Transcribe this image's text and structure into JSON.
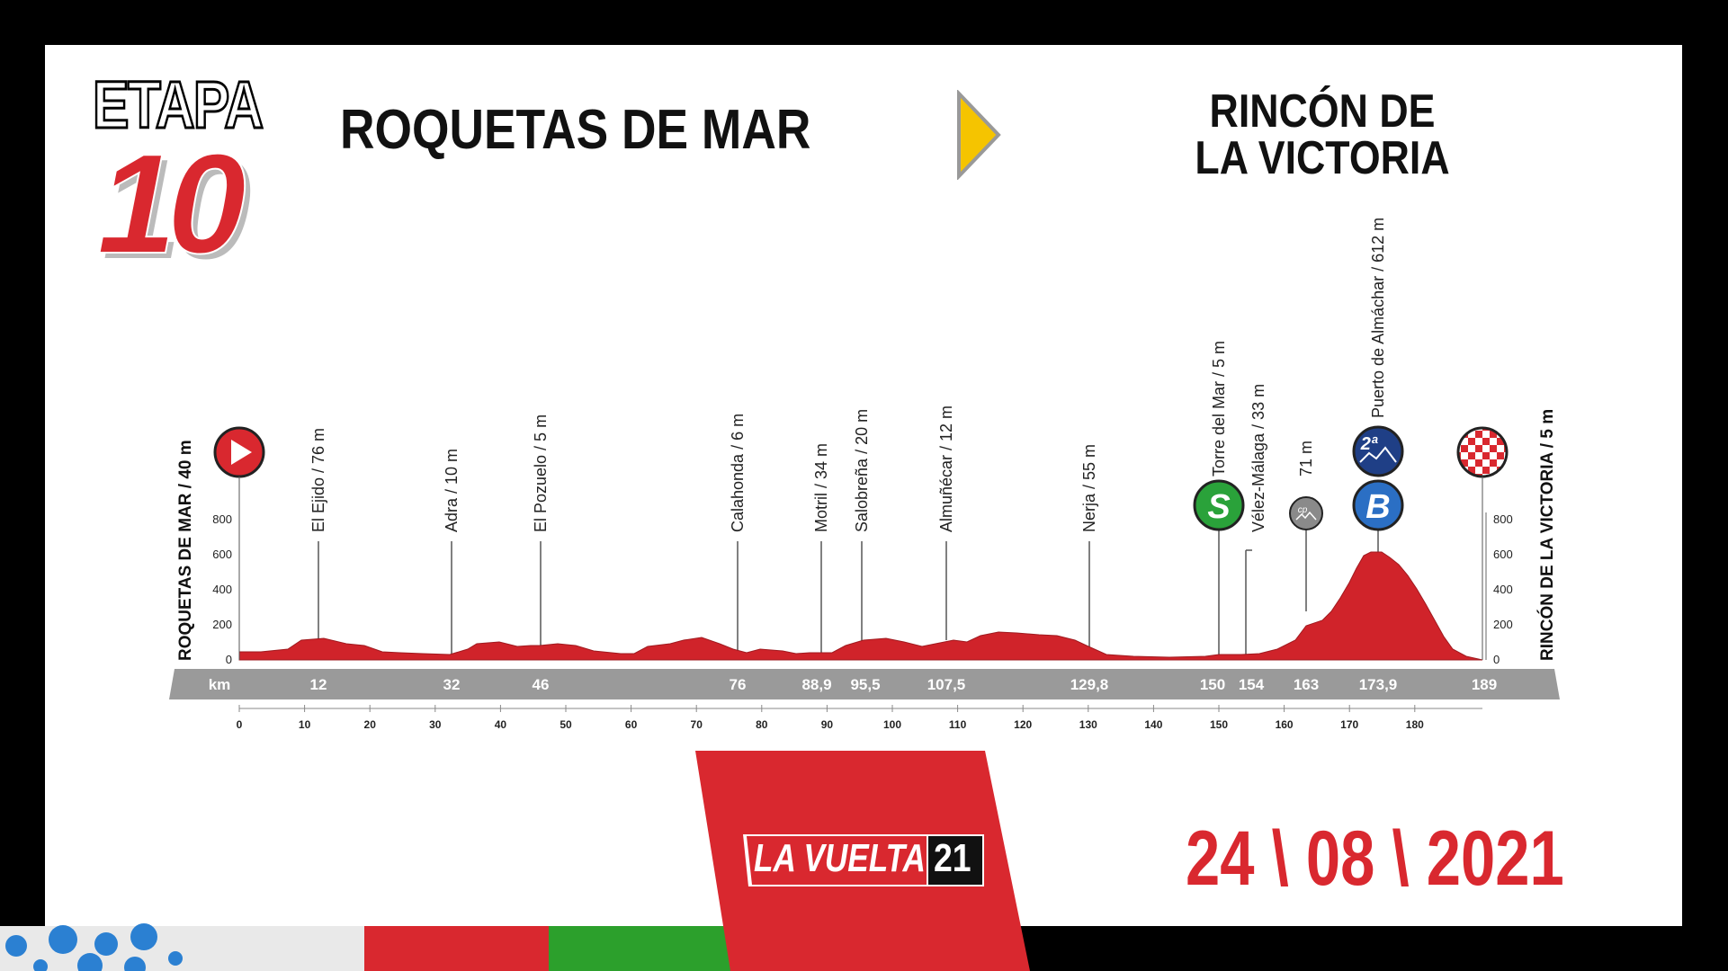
{
  "stage": {
    "word": "ETAPA",
    "number": "10"
  },
  "route": {
    "start": "ROQUETAS DE MAR",
    "finish_line1": "RINCÓN DE",
    "finish_line2": "LA VICTORIA"
  },
  "date": "24 \\ 08 \\ 2021",
  "logo": {
    "text": "LA VUELTA",
    "year": "21"
  },
  "profile": {
    "start_label": "ROQUETAS DE MAR / 40 m",
    "finish_label": "RINCÓN DE LA VICTORIA / 5 m",
    "km_label": "km",
    "elevation_ticks": [
      "800",
      "600",
      "400",
      "200",
      "0"
    ],
    "distance_ticks": [
      "0",
      "10",
      "20",
      "30",
      "40",
      "50",
      "60",
      "70",
      "80",
      "90",
      "100",
      "110",
      "120",
      "130",
      "140",
      "150",
      "160",
      "170",
      "180"
    ],
    "waypoints": [
      {
        "name": "El Ejido / 76 m",
        "km": "12"
      },
      {
        "name": "Adra / 10 m",
        "km": "32"
      },
      {
        "name": "El Pozuelo / 5 m",
        "km": "46"
      },
      {
        "name": "Calahonda / 6 m",
        "km": "76"
      },
      {
        "name": "Motril / 34 m",
        "km": "88,9"
      },
      {
        "name": "Salobreña / 20 m",
        "km": "95,5"
      },
      {
        "name": "Almuñécar / 12 m",
        "km": "107,5"
      },
      {
        "name": "Nerja / 55 m",
        "km": "129,8"
      },
      {
        "name": "Torre del Mar / 5 m",
        "km": "150"
      },
      {
        "name": "Vélez-Málaga / 33 m",
        "km": "154"
      },
      {
        "name": "71 m",
        "km": "163"
      },
      {
        "name": "Puerto de Almáchar / 612 m",
        "km": "173,9"
      },
      {
        "name": "",
        "km": "189"
      }
    ],
    "icons": {
      "sprint": "S",
      "climb_category": "2ª",
      "bonus": "B",
      "cp": "cp"
    },
    "colors": {
      "profile": "#d0232a",
      "band": "#9a9a9a",
      "accent": "#d9282f",
      "sprint": "#2aa23a",
      "climb": "#1f3f86"
    }
  }
}
